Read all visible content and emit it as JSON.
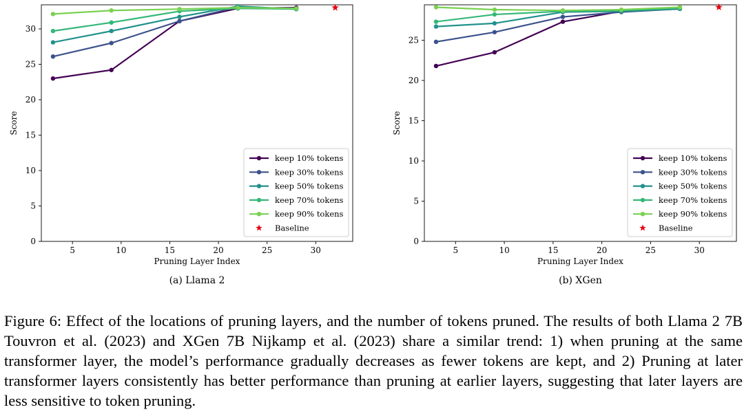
{
  "chart_data": [
    {
      "type": "line",
      "subcaption": "(a) Llama 2",
      "xlabel": "Pruning Layer Index",
      "ylabel": "Score",
      "xlim": [
        1.8,
        33.8
      ],
      "ylim": [
        0,
        33.4
      ],
      "xticks": [
        5,
        10,
        15,
        20,
        25,
        30
      ],
      "yticks": [
        0,
        5,
        10,
        15,
        20,
        25,
        30
      ],
      "legend_position": "lower-right",
      "series": [
        {
          "name": "keep 10% tokens",
          "color": "#440154",
          "x": [
            3,
            9,
            16,
            22,
            28
          ],
          "y": [
            23.0,
            24.2,
            31.1,
            32.9,
            33.0
          ]
        },
        {
          "name": "keep 30% tokens",
          "color": "#3b528b",
          "x": [
            3,
            9,
            16,
            22,
            28
          ],
          "y": [
            26.1,
            28.0,
            31.1,
            33.1,
            32.8
          ]
        },
        {
          "name": "keep 50% tokens",
          "color": "#21918c",
          "x": [
            3,
            9,
            16,
            22,
            28
          ],
          "y": [
            28.1,
            29.7,
            31.7,
            33.2,
            32.8
          ]
        },
        {
          "name": "keep 70% tokens",
          "color": "#35b779",
          "x": [
            3,
            9,
            16,
            22,
            28
          ],
          "y": [
            29.7,
            30.9,
            32.5,
            32.9,
            32.8
          ]
        },
        {
          "name": "keep 90% tokens",
          "color": "#7ad151",
          "x": [
            3,
            9,
            16,
            22,
            28
          ],
          "y": [
            32.1,
            32.6,
            32.8,
            33.0,
            32.9
          ]
        }
      ],
      "baseline": {
        "name": "Baseline",
        "color": "#e8000b",
        "x": 32,
        "y": 33.0
      }
    },
    {
      "type": "line",
      "subcaption": "(b) XGen",
      "xlabel": "Pruning Layer Index",
      "ylabel": "Score",
      "xlim": [
        1.8,
        33.8
      ],
      "ylim": [
        0,
        29.4
      ],
      "xticks": [
        5,
        10,
        15,
        20,
        25,
        30
      ],
      "yticks": [
        0,
        5,
        10,
        15,
        20,
        25
      ],
      "legend_position": "lower-right",
      "series": [
        {
          "name": "keep 10% tokens",
          "color": "#440154",
          "x": [
            3,
            9,
            16,
            22,
            28
          ],
          "y": [
            21.8,
            23.5,
            27.3,
            28.6,
            28.9
          ]
        },
        {
          "name": "keep 30% tokens",
          "color": "#3b528b",
          "x": [
            3,
            9,
            16,
            22,
            28
          ],
          "y": [
            24.8,
            26.0,
            27.9,
            28.5,
            28.9
          ]
        },
        {
          "name": "keep 50% tokens",
          "color": "#21918c",
          "x": [
            3,
            9,
            16,
            22,
            28
          ],
          "y": [
            26.7,
            27.1,
            28.5,
            28.6,
            28.9
          ]
        },
        {
          "name": "keep 70% tokens",
          "color": "#35b779",
          "x": [
            3,
            9,
            16,
            22,
            28
          ],
          "y": [
            27.3,
            28.2,
            28.6,
            28.7,
            29.0
          ]
        },
        {
          "name": "keep 90% tokens",
          "color": "#7ad151",
          "x": [
            3,
            9,
            16,
            22,
            28
          ],
          "y": [
            29.1,
            28.8,
            28.7,
            28.8,
            29.1
          ]
        }
      ],
      "baseline": {
        "name": "Baseline",
        "color": "#e8000b",
        "x": 32,
        "y": 29.1
      }
    }
  ],
  "caption": "Figure 6: Effect of the locations of pruning layers, and the number of tokens pruned. The results of both Llama 2 7B Touvron et al. (2023) and XGen 7B Nijkamp et al. (2023) share a similar trend: 1) when pruning at the same transformer layer, the model’s performance gradually decreases as fewer tokens are kept, and 2) Pruning at later transformer layers consistently has better performance than pruning at earlier layers, suggesting that later layers are less sensitive to token pruning."
}
